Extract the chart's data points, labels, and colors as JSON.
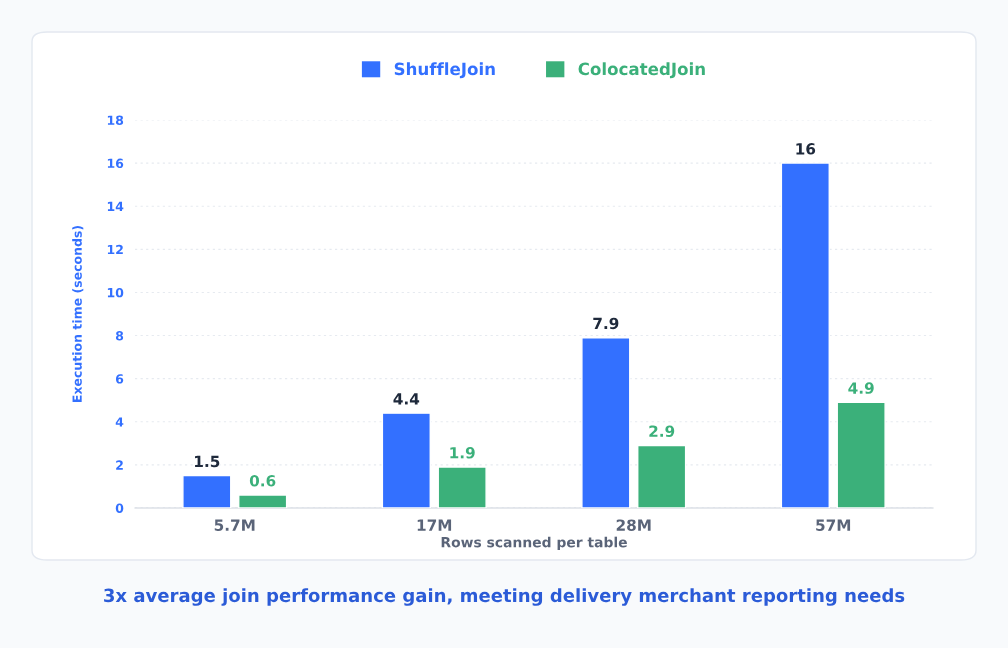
{
  "chart_data": {
    "type": "bar",
    "title": "3x average join performance gain, meeting delivery merchant reporting needs",
    "xlabel": "Rows scanned per table",
    "ylabel": "Execution time (seconds)",
    "categories": [
      "5.7M",
      "17M",
      "28M",
      "57M"
    ],
    "series": [
      {
        "name": "ShuffleJoin",
        "color": "#3370ff",
        "values": [
          1.5,
          4.4,
          7.9,
          16
        ]
      },
      {
        "name": "ColocatedJoin",
        "color": "#3bb07a",
        "values": [
          0.6,
          1.9,
          2.9,
          4.9
        ]
      }
    ],
    "ylim": [
      0,
      18
    ],
    "yticks": [
      0,
      2,
      4,
      6,
      8,
      10,
      12,
      14,
      16,
      18
    ],
    "grid": "y",
    "legend": "top",
    "data_labels": true
  }
}
